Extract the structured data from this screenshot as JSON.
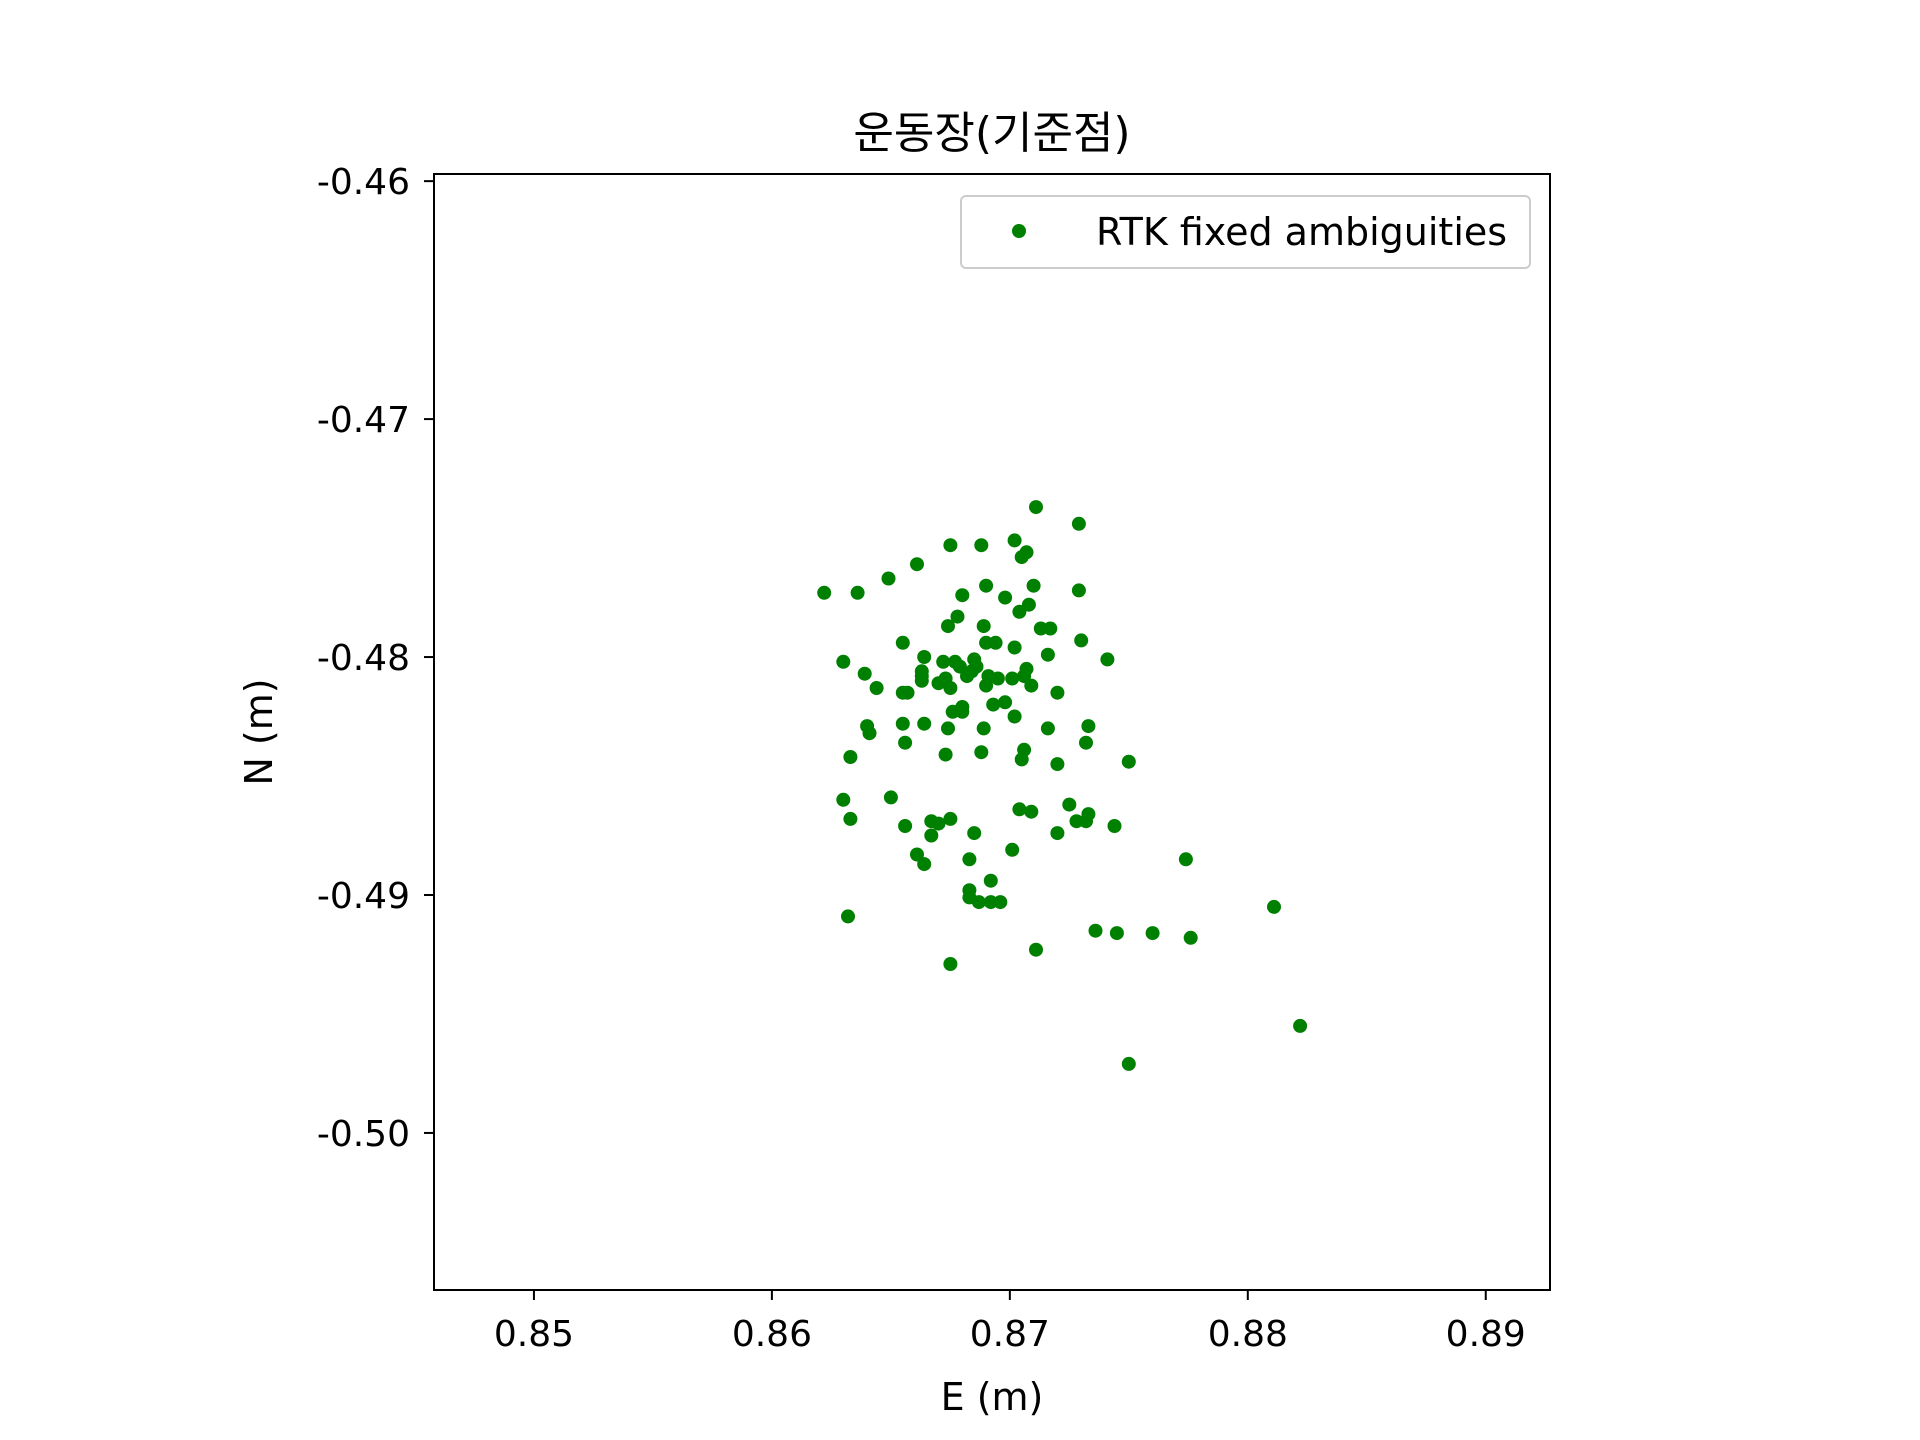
{
  "chart_data": {
    "type": "scatter",
    "title": "운동장(기준점)",
    "xlabel": "E (m)",
    "ylabel": "N (m)",
    "xlim": [
      0.8458,
      0.8927
    ],
    "ylim": [
      -0.5066,
      -0.4597
    ],
    "xticks": [
      0.85,
      0.86,
      0.87,
      0.88,
      0.89
    ],
    "xtick_labels": [
      "0.85",
      "0.86",
      "0.87",
      "0.88",
      "0.89"
    ],
    "yticks": [
      -0.46,
      -0.47,
      -0.48,
      -0.49,
      -0.5
    ],
    "ytick_labels": [
      "-0.46",
      "-0.47",
      "-0.48",
      "-0.49",
      "-0.50"
    ],
    "grid": false,
    "legend_position": "top-right",
    "colors": {
      "series": "#008000",
      "axes": "#000000",
      "legend_border": "#cccccc"
    },
    "series": [
      {
        "name": "RTK fixed ambiguities",
        "marker": "circle",
        "points": [
          [
            0.8711,
            -0.4737
          ],
          [
            0.8729,
            -0.4744
          ],
          [
            0.8702,
            -0.4751
          ],
          [
            0.8707,
            -0.4756
          ],
          [
            0.8688,
            -0.4753
          ],
          [
            0.8675,
            -0.4753
          ],
          [
            0.8705,
            -0.4758
          ],
          [
            0.8661,
            -0.4761
          ],
          [
            0.8649,
            -0.4767
          ],
          [
            0.869,
            -0.477
          ],
          [
            0.871,
            -0.477
          ],
          [
            0.8622,
            -0.4773
          ],
          [
            0.8636,
            -0.4773
          ],
          [
            0.868,
            -0.4774
          ],
          [
            0.8729,
            -0.4772
          ],
          [
            0.8698,
            -0.4775
          ],
          [
            0.8708,
            -0.4778
          ],
          [
            0.8704,
            -0.4781
          ],
          [
            0.8678,
            -0.4783
          ],
          [
            0.8674,
            -0.4787
          ],
          [
            0.8689,
            -0.4787
          ],
          [
            0.8713,
            -0.4788
          ],
          [
            0.8717,
            -0.4788
          ],
          [
            0.8655,
            -0.4794
          ],
          [
            0.869,
            -0.4794
          ],
          [
            0.8694,
            -0.4794
          ],
          [
            0.8702,
            -0.4796
          ],
          [
            0.873,
            -0.4793
          ],
          [
            0.8716,
            -0.4799
          ],
          [
            0.8741,
            -0.4801
          ],
          [
            0.863,
            -0.4802
          ],
          [
            0.8664,
            -0.48
          ],
          [
            0.8672,
            -0.4802
          ],
          [
            0.8677,
            -0.4802
          ],
          [
            0.8685,
            -0.4801
          ],
          [
            0.8679,
            -0.4804
          ],
          [
            0.8686,
            -0.4804
          ],
          [
            0.8707,
            -0.4805
          ],
          [
            0.8639,
            -0.4807
          ],
          [
            0.8663,
            -0.4806
          ],
          [
            0.8684,
            -0.4806
          ],
          [
            0.8663,
            -0.4808
          ],
          [
            0.8682,
            -0.4808
          ],
          [
            0.8691,
            -0.4808
          ],
          [
            0.8695,
            -0.4809
          ],
          [
            0.8663,
            -0.481
          ],
          [
            0.8673,
            -0.4809
          ],
          [
            0.8701,
            -0.4809
          ],
          [
            0.8706,
            -0.4808
          ],
          [
            0.867,
            -0.4811
          ],
          [
            0.869,
            -0.4812
          ],
          [
            0.8644,
            -0.4813
          ],
          [
            0.8675,
            -0.4813
          ],
          [
            0.8709,
            -0.4812
          ],
          [
            0.8655,
            -0.4815
          ],
          [
            0.8657,
            -0.4815
          ],
          [
            0.872,
            -0.4815
          ],
          [
            0.8698,
            -0.4819
          ],
          [
            0.8693,
            -0.482
          ],
          [
            0.868,
            -0.4821
          ],
          [
            0.868,
            -0.4823
          ],
          [
            0.8676,
            -0.4823
          ],
          [
            0.8702,
            -0.4825
          ],
          [
            0.8655,
            -0.4828
          ],
          [
            0.8664,
            -0.4828
          ],
          [
            0.864,
            -0.4829
          ],
          [
            0.8733,
            -0.4829
          ],
          [
            0.8674,
            -0.483
          ],
          [
            0.8689,
            -0.483
          ],
          [
            0.8716,
            -0.483
          ],
          [
            0.8641,
            -0.4832
          ],
          [
            0.8656,
            -0.4836
          ],
          [
            0.8732,
            -0.4836
          ],
          [
            0.8706,
            -0.4839
          ],
          [
            0.8688,
            -0.484
          ],
          [
            0.8673,
            -0.4841
          ],
          [
            0.8633,
            -0.4842
          ],
          [
            0.8705,
            -0.4843
          ],
          [
            0.875,
            -0.4844
          ],
          [
            0.872,
            -0.4845
          ],
          [
            0.865,
            -0.4859
          ],
          [
            0.863,
            -0.486
          ],
          [
            0.8725,
            -0.4862
          ],
          [
            0.8704,
            -0.4864
          ],
          [
            0.8709,
            -0.4865
          ],
          [
            0.8733,
            -0.4866
          ],
          [
            0.8633,
            -0.4868
          ],
          [
            0.8667,
            -0.4869
          ],
          [
            0.8675,
            -0.4868
          ],
          [
            0.867,
            -0.487
          ],
          [
            0.8728,
            -0.4869
          ],
          [
            0.8732,
            -0.4869
          ],
          [
            0.8744,
            -0.4871
          ],
          [
            0.8656,
            -0.4871
          ],
          [
            0.872,
            -0.4874
          ],
          [
            0.8685,
            -0.4874
          ],
          [
            0.8667,
            -0.4875
          ],
          [
            0.8701,
            -0.4881
          ],
          [
            0.8661,
            -0.4883
          ],
          [
            0.8683,
            -0.4885
          ],
          [
            0.8774,
            -0.4885
          ],
          [
            0.8664,
            -0.4887
          ],
          [
            0.8692,
            -0.4894
          ],
          [
            0.8683,
            -0.4898
          ],
          [
            0.8683,
            -0.4901
          ],
          [
            0.8687,
            -0.4903
          ],
          [
            0.8692,
            -0.4903
          ],
          [
            0.8696,
            -0.4903
          ],
          [
            0.8811,
            -0.4905
          ],
          [
            0.8632,
            -0.4909
          ],
          [
            0.8736,
            -0.4915
          ],
          [
            0.8745,
            -0.4916
          ],
          [
            0.876,
            -0.4916
          ],
          [
            0.8776,
            -0.4918
          ],
          [
            0.8711,
            -0.4923
          ],
          [
            0.8675,
            -0.4929
          ],
          [
            0.8822,
            -0.4955
          ],
          [
            0.875,
            -0.4971
          ]
        ]
      }
    ]
  }
}
